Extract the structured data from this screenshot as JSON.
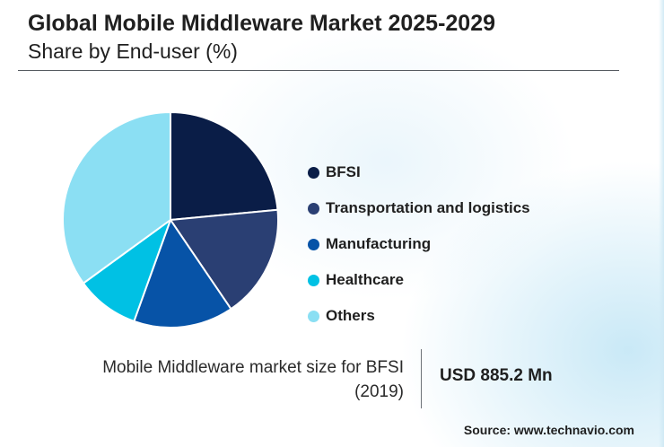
{
  "header": {
    "title": "Global Mobile Middleware Market 2025-2029",
    "subtitle": "Share by End-user (%)"
  },
  "chart_data": {
    "type": "pie",
    "title": "Global Mobile Middleware Market 2025-2029",
    "subtitle": "Share by End-user (%)",
    "start_angle_deg": 0,
    "direction": "clockwise",
    "legend_position": "right",
    "slices": [
      {
        "label": "BFSI",
        "value": 23.5,
        "color": "#0a1d47"
      },
      {
        "label": "Transportation and logistics",
        "value": 17.0,
        "color": "#2a3f73"
      },
      {
        "label": "Manufacturing",
        "value": 15.0,
        "color": "#0753a7"
      },
      {
        "label": "Healthcare",
        "value": 9.5,
        "color": "#00c1e4"
      },
      {
        "label": "Others",
        "value": 35.0,
        "color": "#8bdff3"
      }
    ]
  },
  "stat": {
    "caption": "Mobile Middleware market size for BFSI (2019)",
    "value": "USD 885.2 Mn"
  },
  "source": "Source: www.technavio.com"
}
